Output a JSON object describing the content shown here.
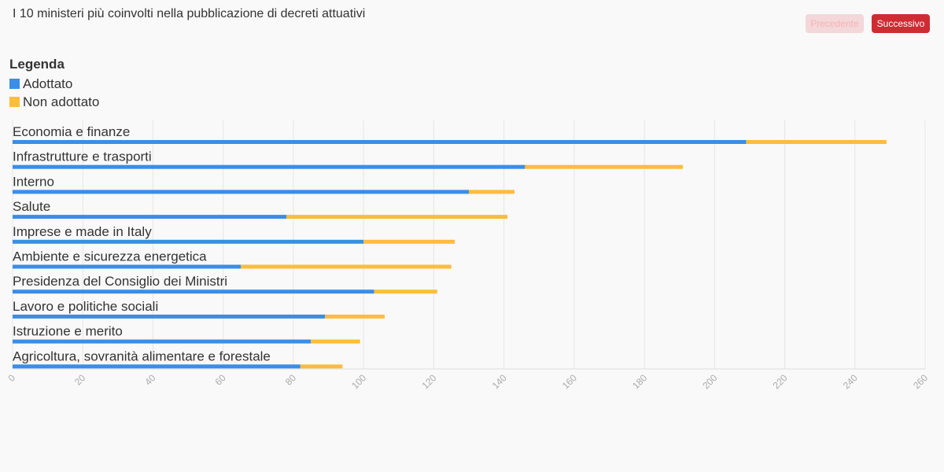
{
  "header": {
    "title": "I 10 ministeri più coinvolti nella pubblicazione di decreti attuativi",
    "prev_label": "Precedente",
    "next_label": "Successivo"
  },
  "legend": {
    "title": "Legenda",
    "items": [
      "Adottato",
      "Non adottato"
    ]
  },
  "colors": {
    "adottato": "#3a8ee6",
    "non_adottato": "#fdbd3c",
    "grid": "#e6e6e6",
    "axis": "#dddddd"
  },
  "chart_data": {
    "type": "bar",
    "orientation": "horizontal",
    "stacked": true,
    "categories": [
      "Economia e finanze",
      "Infrastrutture e trasporti",
      "Interno",
      "Salute",
      "Imprese e made in Italy",
      "Ambiente e sicurezza energetica",
      "Presidenza del Consiglio dei Ministri",
      "Lavoro e politiche sociali",
      "Istruzione e merito",
      "Agricoltura, sovranità alimentare e forestale"
    ],
    "series": [
      {
        "name": "Adottato",
        "values": [
          209,
          146,
          130,
          78,
          100,
          65,
          103,
          89,
          85,
          82
        ]
      },
      {
        "name": "Non adottato",
        "values": [
          40,
          45,
          13,
          63,
          26,
          60,
          18,
          17,
          14,
          12
        ]
      }
    ],
    "xlim": [
      0,
      260
    ],
    "xticks": [
      0,
      20,
      40,
      60,
      80,
      100,
      120,
      140,
      160,
      180,
      200,
      220,
      240,
      260
    ],
    "grid": true,
    "legend_position": "top-left"
  }
}
